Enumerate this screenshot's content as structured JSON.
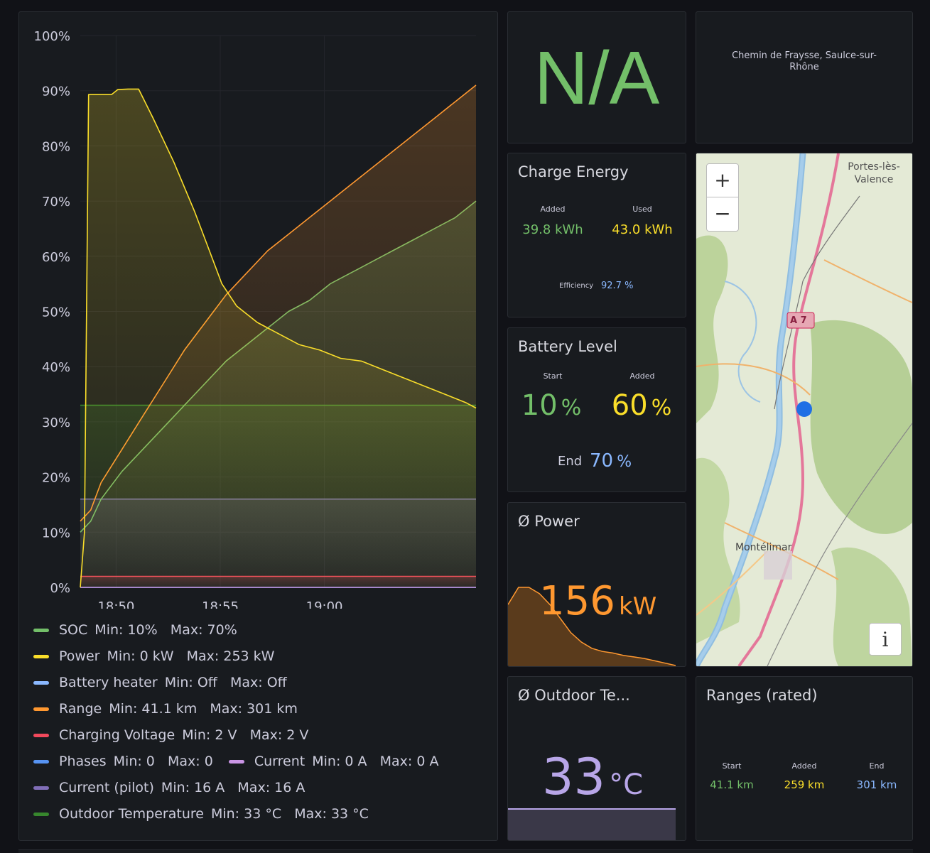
{
  "chart": {
    "chart_data": {
      "type": "line",
      "x_ticks": [
        "18:50",
        "18:55",
        "19:00"
      ],
      "y_ticks": [
        "0%",
        "10%",
        "20%",
        "30%",
        "40%",
        "50%",
        "60%",
        "70%",
        "80%",
        "90%",
        "100%"
      ],
      "ylim": [
        0,
        100
      ],
      "xlim_minutes": [
        0,
        19
      ],
      "series": [
        {
          "name": "SOC",
          "color": "#73bf69",
          "x": [
            0,
            0.5,
            1,
            2,
            3,
            4,
            5,
            6,
            7,
            8,
            9,
            10,
            11,
            12,
            13,
            14,
            15,
            16,
            17,
            18,
            19
          ],
          "y": [
            10,
            12,
            16,
            21,
            25,
            29,
            33,
            37,
            41,
            44,
            47,
            50,
            52,
            55,
            57,
            59,
            61,
            63,
            65,
            67,
            70
          ]
        },
        {
          "name": "Power",
          "color": "#fade2a",
          "x": [
            0,
            0.2,
            0.4,
            1.5,
            1.8,
            2.3,
            2.8,
            3.5,
            4.5,
            5.5,
            6,
            6.8,
            7.5,
            8.5,
            9.5,
            10.5,
            11.5,
            12.5,
            13.5,
            14.5,
            15.5,
            16.5,
            17.5,
            18.5,
            19
          ],
          "y": [
            0,
            10,
            89.3,
            89.3,
            90.2,
            90.3,
            90.3,
            85,
            77,
            68,
            63,
            55,
            51,
            48,
            46,
            44,
            43,
            41.5,
            41,
            39.5,
            38,
            36.5,
            35,
            33.5,
            32.5
          ]
        },
        {
          "name": "Battery heater",
          "color": "#8ab8ff",
          "x": [],
          "y": []
        },
        {
          "name": "Range",
          "color": "#ff9830",
          "x": [
            0,
            0.5,
            1,
            2,
            3,
            4,
            5,
            6,
            7,
            8,
            9,
            10,
            11,
            12,
            13,
            14,
            15,
            16,
            17,
            18,
            19
          ],
          "y": [
            12,
            14,
            19,
            25,
            31,
            37,
            43,
            48,
            53,
            57,
            61,
            64,
            67,
            70,
            73,
            76,
            79,
            82,
            85,
            88,
            91
          ]
        },
        {
          "name": "Charging Voltage",
          "color": "#f2495c",
          "x": [
            0,
            19
          ],
          "y": [
            2,
            2
          ]
        },
        {
          "name": "Phases",
          "color": "#5794f2",
          "x": [
            0,
            19
          ],
          "y": [
            0,
            0
          ]
        },
        {
          "name": "Current",
          "color": "#ca95e5",
          "x": [
            0,
            19
          ],
          "y": [
            0,
            0
          ]
        },
        {
          "name": "Current (pilot)",
          "color": "#806eb7",
          "x": [
            0,
            19
          ],
          "y": [
            16,
            16
          ]
        },
        {
          "name": "Outdoor Temperature",
          "color": "#37872d",
          "x": [
            0,
            19
          ],
          "y": [
            33,
            33
          ]
        }
      ]
    },
    "legend": [
      {
        "name": "SOC",
        "color": "#73bf69",
        "stats": "Min: 10%   Max: 70%"
      },
      {
        "name": "Power",
        "color": "#fade2a",
        "stats": "Min: 0 kW   Max: 253 kW"
      },
      {
        "name": "Battery heater",
        "color": "#8ab8ff",
        "stats": "Min: Off   Max: Off"
      },
      {
        "name": "Range",
        "color": "#ff9830",
        "stats": "Min: 41.1 km   Max: 301 km"
      },
      {
        "name": "Charging Voltage",
        "color": "#f2495c",
        "stats": "Min: 2 V   Max: 2 V"
      },
      {
        "name": "Phases",
        "color": "#5794f2",
        "stats": "Min: 0   Max: 0"
      },
      {
        "name": "Current",
        "color": "#ca95e5",
        "stats": "Min: 0 A   Max: 0 A"
      },
      {
        "name": "Current (pilot)",
        "color": "#806eb7",
        "stats": "Min: 16 A   Max: 16 A"
      },
      {
        "name": "Outdoor Temperature",
        "color": "#37872d",
        "stats": "Min: 33 °C   Max: 33 °C"
      }
    ]
  },
  "status": {
    "value": "N/A",
    "color": "#73bf69"
  },
  "address": {
    "text": "Chemin de Fraysse, Saulce-sur-Rhône"
  },
  "charge_energy": {
    "title": "Charge Energy",
    "added_label": "Added",
    "added_value": "39.8 kWh",
    "used_label": "Used",
    "used_value": "43.0 kWh",
    "efficiency_label": "Efficiency",
    "efficiency_value": "92.7 %"
  },
  "battery_level": {
    "title": "Battery Level",
    "start_label": "Start",
    "start_value": "10",
    "start_unit": "%",
    "added_label": "Added",
    "added_value": "60",
    "added_unit": "%",
    "end_label": "End",
    "end_value": "70",
    "end_unit": "%"
  },
  "power": {
    "title": "Ø Power",
    "value": "156",
    "unit": "kW",
    "sparkline": [
      0.78,
      1,
      1,
      0.92,
      0.78,
      0.6,
      0.42,
      0.3,
      0.22,
      0.18,
      0.16,
      0.13,
      0.11,
      0.09,
      0.06,
      0.03,
      0.0
    ]
  },
  "outdoor_temp": {
    "title": "Ø Outdoor Te...",
    "value": "33",
    "unit": "°C"
  },
  "ranges": {
    "title": "Ranges (rated)",
    "start_label": "Start",
    "start_value": "41.1 km",
    "added_label": "Added",
    "added_value": "259 km",
    "end_label": "End",
    "end_value": "301 km"
  },
  "map": {
    "zoom_in": "+",
    "zoom_out": "−",
    "info": "i",
    "label_top": "Portes-lès-Valence",
    "label_city": "Montélimar",
    "label_road": "A 7"
  }
}
